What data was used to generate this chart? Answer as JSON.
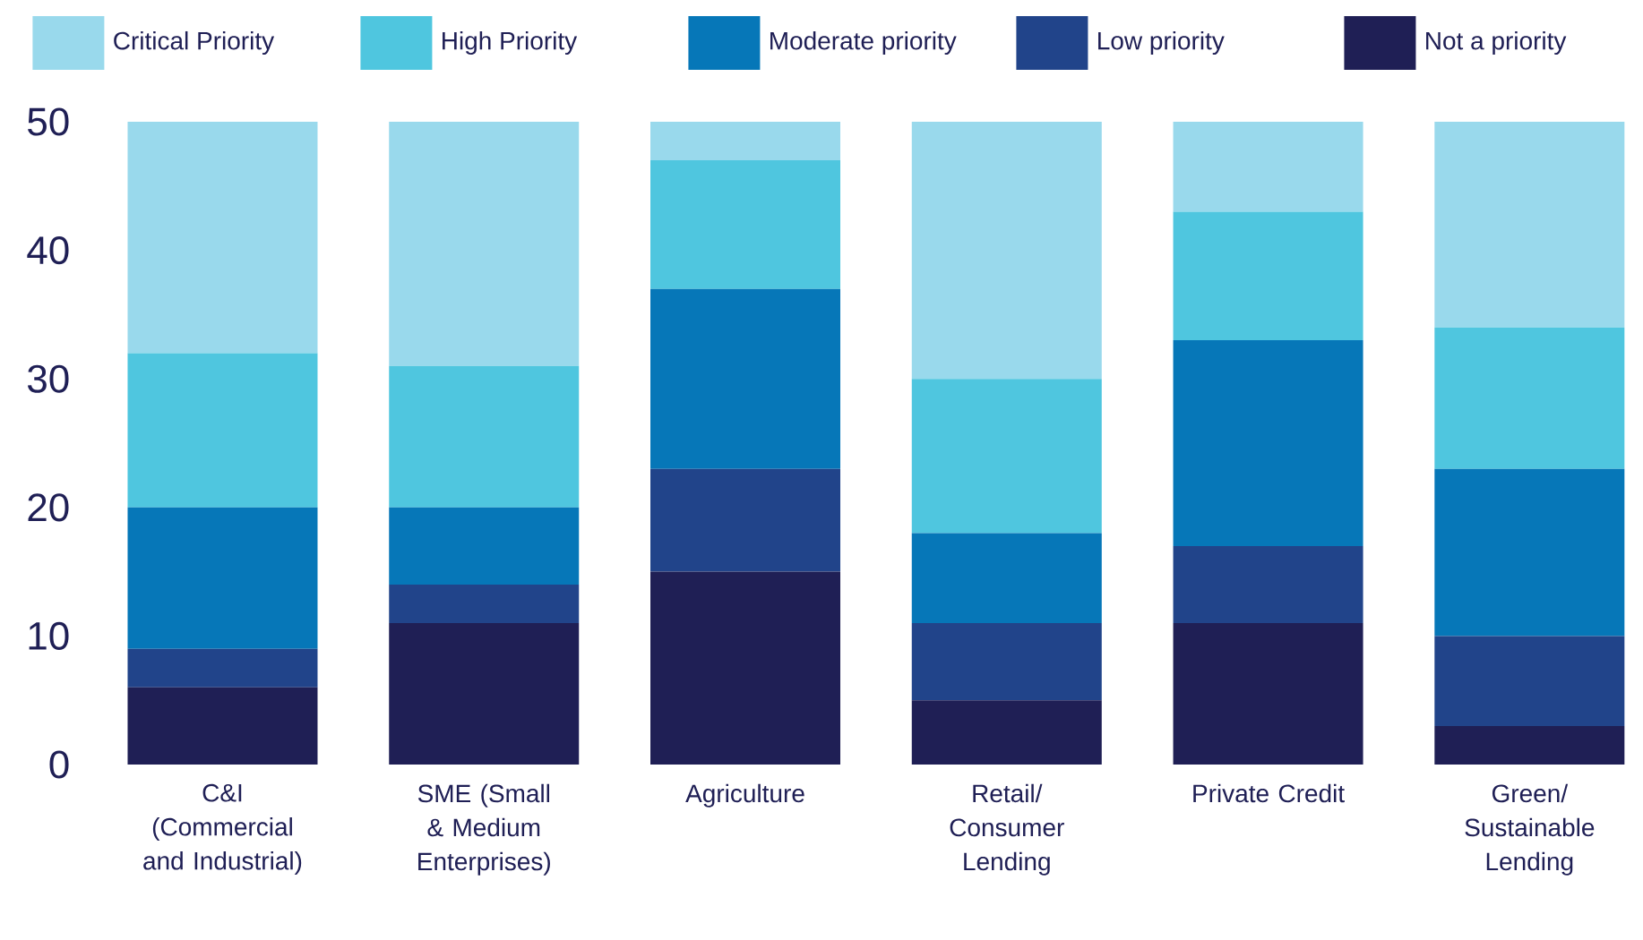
{
  "chart_data": {
    "type": "bar",
    "stacked": true,
    "legend": "top",
    "categories": [
      "C&I (Commercial and Industrial)",
      "SME (Small & Medium Enterprises)",
      "Agriculture",
      "Retail/ Consumer Lending",
      "Private Credit",
      "Green/ Sustainable Lending"
    ],
    "series": [
      {
        "name": "Not a priority",
        "color": "#1f1f55",
        "values": [
          6,
          11,
          15,
          5,
          11,
          3
        ]
      },
      {
        "name": "Low priority",
        "color": "#21448a",
        "values": [
          3,
          3,
          8,
          6,
          6,
          7
        ]
      },
      {
        "name": "Moderate priority",
        "color": "#0677b8",
        "values": [
          11,
          6,
          14,
          7,
          16,
          13
        ]
      },
      {
        "name": "High Priority",
        "color": "#4fc6df",
        "values": [
          12,
          11,
          10,
          12,
          10,
          11
        ]
      },
      {
        "name": "Critical Priority",
        "color": "#99d9ec",
        "values": [
          18,
          19,
          3,
          20,
          7,
          16
        ]
      }
    ],
    "ylim": [
      0,
      50
    ],
    "yticks": [
      0,
      10,
      20,
      30,
      40,
      50
    ]
  }
}
